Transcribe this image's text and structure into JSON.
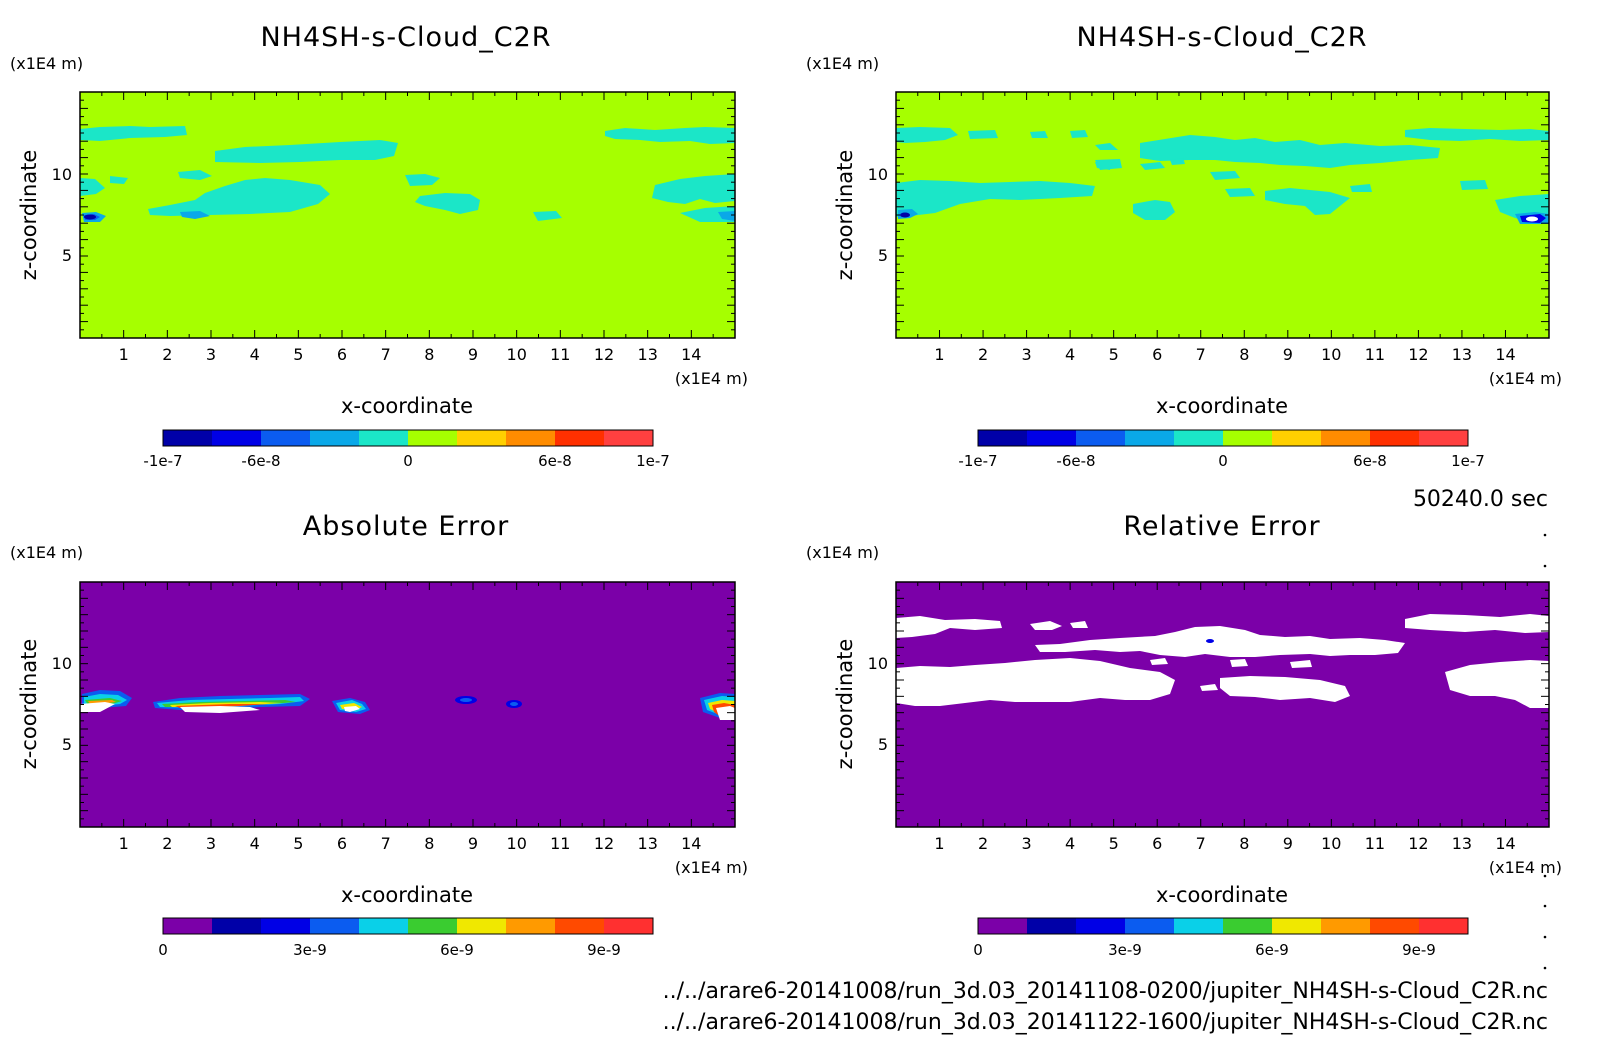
{
  "chart_data": [
    {
      "type": "heatmap",
      "title": "NH4SH-s-Cloud_C2R",
      "xlabel": "x-coordinate",
      "ylabel": "z-coordinate",
      "x_unit": "(x1E4 m)",
      "y_unit": "(x1E4 m)",
      "xlim": [
        0,
        15
      ],
      "ylim": [
        0,
        15
      ],
      "x_ticks": [
        "1",
        "2",
        "3",
        "4",
        "5",
        "6",
        "7",
        "8",
        "9",
        "10",
        "11",
        "12",
        "13",
        "14"
      ],
      "y_ticks": [
        "5",
        "10"
      ],
      "colorbar": {
        "colors": [
          "#0000a8",
          "#0000e6",
          "#0b5cf0",
          "#0aa8e8",
          "#1be6c8",
          "#a6ff00",
          "#ffd000",
          "#ff8c00",
          "#ff3000",
          "#ff4040"
        ],
        "range": [
          -1e-07,
          1e-07
        ],
        "tick_labels": [
          "-1e-7",
          "-6e-8",
          "0",
          "6e-8",
          "1e-7"
        ]
      },
      "background_value": 0,
      "features": [
        {
          "kind": "cloud_layer",
          "z_range": [
            11.5,
            12.5
          ],
          "value": "-2e-8"
        },
        {
          "kind": "cloud_layer",
          "z_range": [
            7.5,
            9.5
          ],
          "value": "-2e-8"
        },
        {
          "kind": "minimum",
          "x": 0.3,
          "z": 7.4,
          "value": "-1e-7"
        }
      ]
    },
    {
      "type": "heatmap",
      "title": "NH4SH-s-Cloud_C2R",
      "xlabel": "x-coordinate",
      "ylabel": "z-coordinate",
      "x_unit": "(x1E4 m)",
      "y_unit": "(x1E4 m)",
      "xlim": [
        0,
        15
      ],
      "ylim": [
        0,
        15
      ],
      "x_ticks": [
        "1",
        "2",
        "3",
        "4",
        "5",
        "6",
        "7",
        "8",
        "9",
        "10",
        "11",
        "12",
        "13",
        "14"
      ],
      "y_ticks": [
        "5",
        "10"
      ],
      "colorbar": {
        "colors": [
          "#0000a8",
          "#0000e6",
          "#0b5cf0",
          "#0aa8e8",
          "#1be6c8",
          "#a6ff00",
          "#ffd000",
          "#ff8c00",
          "#ff3000",
          "#ff4040"
        ],
        "range": [
          -1e-07,
          1e-07
        ],
        "tick_labels": [
          "-1e-7",
          "-6e-8",
          "0",
          "6e-8",
          "1e-7"
        ]
      },
      "background_value": 0,
      "features": [
        {
          "kind": "cloud_layer",
          "z_range": [
            10.5,
            12.5
          ],
          "value": "-2e-8"
        },
        {
          "kind": "cloud_layer",
          "z_range": [
            7.5,
            9.5
          ],
          "value": "-2e-8"
        },
        {
          "kind": "minimum",
          "x": 14.6,
          "z": 7.2,
          "value": "-1e-7"
        }
      ]
    },
    {
      "type": "heatmap",
      "title": "Absolute Error",
      "xlabel": "x-coordinate",
      "ylabel": "z-coordinate",
      "x_unit": "(x1E4 m)",
      "y_unit": "(x1E4 m)",
      "xlim": [
        0,
        15
      ],
      "ylim": [
        0,
        15
      ],
      "x_ticks": [
        "1",
        "2",
        "3",
        "4",
        "5",
        "6",
        "7",
        "8",
        "9",
        "10",
        "11",
        "12",
        "13",
        "14"
      ],
      "y_ticks": [
        "5",
        "10"
      ],
      "colorbar": {
        "colors": [
          "#7b00a8",
          "#0000a8",
          "#0000e6",
          "#0b5cf0",
          "#0ad0e8",
          "#3acc30",
          "#f0e800",
          "#ff9a00",
          "#ff4a00",
          "#ff3030"
        ],
        "range": [
          0,
          1e-08
        ],
        "tick_labels": [
          "0",
          "3e-9",
          "6e-9",
          "9e-9"
        ]
      },
      "background_value": 0,
      "features": [
        {
          "kind": "error_band",
          "x_range": [
            0.1,
            1.2
          ],
          "z": 7.7,
          "value": ">1e-8"
        },
        {
          "kind": "error_band",
          "x_range": [
            1.7,
            5.2
          ],
          "z": 7.6,
          "value": ">1e-8"
        },
        {
          "kind": "error_band",
          "x_range": [
            5.8,
            6.6
          ],
          "z": 7.5,
          "value": ">1e-8"
        },
        {
          "kind": "error_band",
          "x_range": [
            8.5,
            9.2
          ],
          "z": 8.0,
          "value": "3e-9"
        },
        {
          "kind": "error_band",
          "x_range": [
            9.6,
            10.1
          ],
          "z": 7.7,
          "value": "3e-9"
        },
        {
          "kind": "error_band",
          "x_range": [
            14.2,
            15.0
          ],
          "z": 7.6,
          "value": ">1e-8"
        }
      ]
    },
    {
      "type": "heatmap",
      "title": "Relative Error",
      "xlabel": "x-coordinate",
      "ylabel": "z-coordinate",
      "x_unit": "(x1E4 m)",
      "y_unit": "(x1E4 m)",
      "xlim": [
        0,
        15
      ],
      "ylim": [
        0,
        15
      ],
      "x_ticks": [
        "1",
        "2",
        "3",
        "4",
        "5",
        "6",
        "7",
        "8",
        "9",
        "10",
        "11",
        "12",
        "13",
        "14"
      ],
      "y_ticks": [
        "5",
        "10"
      ],
      "colorbar": {
        "colors": [
          "#7b00a8",
          "#0000a8",
          "#0000e6",
          "#0b5cf0",
          "#0ad0e8",
          "#3acc30",
          "#f0e800",
          "#ff9a00",
          "#ff4a00",
          "#ff3030"
        ],
        "range": [
          0,
          1e-08
        ],
        "tick_labels": [
          "0",
          "3e-9",
          "6e-9",
          "9e-9"
        ]
      },
      "background_value": 0,
      "features": [
        {
          "kind": "undefined_region",
          "z_range": [
            10.5,
            12.5
          ]
        },
        {
          "kind": "undefined_region",
          "z_range": [
            7.2,
            9.6
          ]
        }
      ]
    }
  ],
  "time_label": "50240.0 sec",
  "files": [
    "../../arare6-20141008/run_3d.03_20141108-0200/jupiter_NH4SH-s-Cloud_C2R.nc",
    "../../arare6-20141008/run_3d.03_20141122-1600/jupiter_NH4SH-s-Cloud_C2R.nc"
  ],
  "colors": {
    "background_green": "#a6ff00",
    "cyan_cloud": "#1be6c8",
    "error_background": "#7b00a8",
    "undefined": "#ffffff"
  }
}
